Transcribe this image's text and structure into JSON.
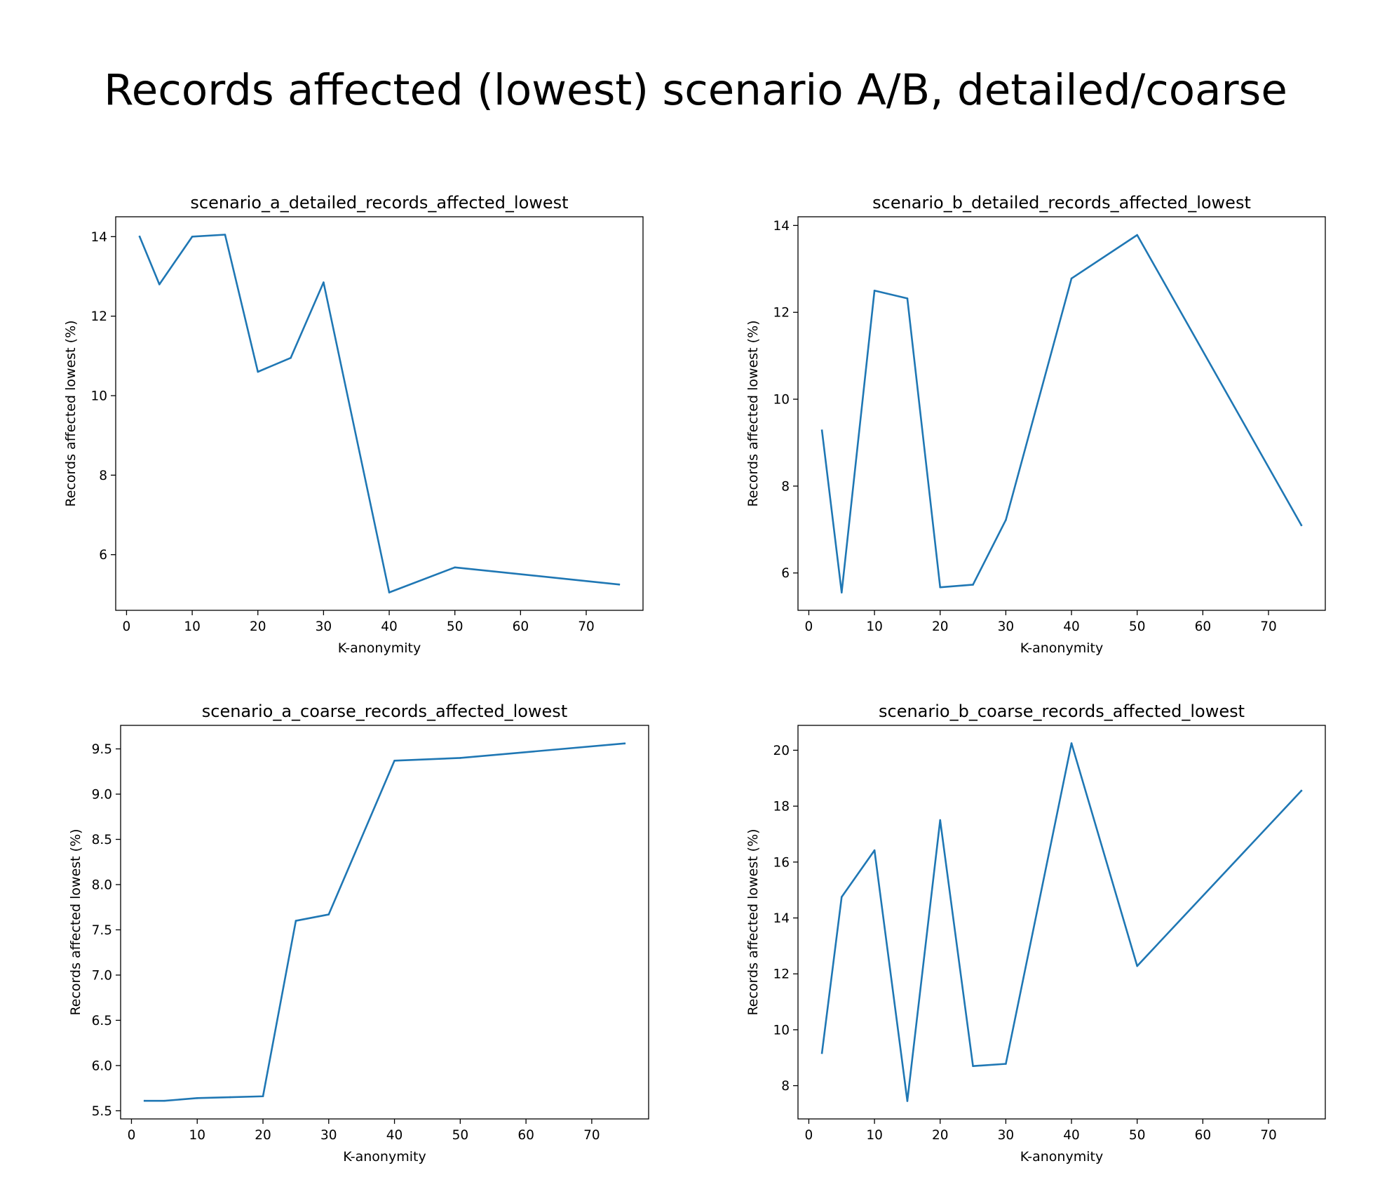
{
  "figure": {
    "suptitle": "Records affected (lowest) scenario A/B, detailed/coarse"
  },
  "chart_data": [
    {
      "type": "line",
      "title": "scenario_a_detailed_records_affected_lowest",
      "xlabel": "K-anonymity",
      "ylabel": "Records affected lowest (%)",
      "x": [
        2,
        5,
        10,
        15,
        20,
        25,
        30,
        40,
        50,
        75
      ],
      "y": [
        14.0,
        12.8,
        14.0,
        14.05,
        10.6,
        10.95,
        12.85,
        5.05,
        5.68,
        5.25
      ],
      "xlim": [
        -1.65,
        78.65
      ],
      "ylim": [
        4.6,
        14.5
      ],
      "xticks": [
        0,
        10,
        20,
        30,
        40,
        50,
        60,
        70
      ],
      "yticks": [
        6,
        8,
        10,
        12,
        14
      ],
      "color": "#1f77b4",
      "grid": false
    },
    {
      "type": "line",
      "title": "scenario_b_detailed_records_affected_lowest",
      "xlabel": "K-anonymity",
      "ylabel": "Records affected lowest (%)",
      "x": [
        2,
        5,
        10,
        15,
        20,
        25,
        30,
        40,
        50,
        75
      ],
      "y": [
        9.28,
        5.55,
        12.5,
        12.32,
        5.67,
        5.73,
        7.22,
        12.78,
        13.78,
        7.1
      ],
      "xlim": [
        -1.65,
        78.65
      ],
      "ylim": [
        5.14,
        14.2
      ],
      "xticks": [
        0,
        10,
        20,
        30,
        40,
        50,
        60,
        70
      ],
      "yticks": [
        6,
        8,
        10,
        12,
        14
      ],
      "color": "#1f77b4",
      "grid": false
    },
    {
      "type": "line",
      "title": "scenario_a_coarse_records_affected_lowest",
      "xlabel": "K-anonymity",
      "ylabel": "Records affected lowest (%)",
      "x": [
        2,
        5,
        10,
        15,
        20,
        25,
        30,
        40,
        50,
        75
      ],
      "y": [
        5.61,
        5.61,
        5.64,
        5.65,
        5.66,
        7.6,
        7.67,
        9.37,
        9.4,
        9.56
      ],
      "xlim": [
        -1.65,
        78.65
      ],
      "ylim": [
        5.41,
        9.76
      ],
      "xticks": [
        0,
        10,
        20,
        30,
        40,
        50,
        60,
        70
      ],
      "yticks": [
        5.5,
        6.0,
        6.5,
        7.0,
        7.5,
        8.0,
        8.5,
        9.0,
        9.5
      ],
      "ytick_labels": [
        "5.5",
        "6.0",
        "6.5",
        "7.0",
        "7.5",
        "8.0",
        "8.5",
        "9.0",
        "9.5"
      ],
      "color": "#1f77b4",
      "grid": false
    },
    {
      "type": "line",
      "title": "scenario_b_coarse_records_affected_lowest",
      "xlabel": "K-anonymity",
      "ylabel": "Records affected lowest (%)",
      "x": [
        2,
        5,
        10,
        15,
        20,
        25,
        30,
        40,
        50,
        75
      ],
      "y": [
        9.17,
        14.75,
        16.42,
        7.45,
        17.5,
        8.7,
        8.78,
        20.25,
        12.28,
        18.55
      ],
      "xlim": [
        -1.65,
        78.65
      ],
      "ylim": [
        6.81,
        20.89
      ],
      "xticks": [
        0,
        10,
        20,
        30,
        40,
        50,
        60,
        70
      ],
      "yticks": [
        8,
        10,
        12,
        14,
        16,
        18,
        20
      ],
      "color": "#1f77b4",
      "grid": false
    }
  ]
}
